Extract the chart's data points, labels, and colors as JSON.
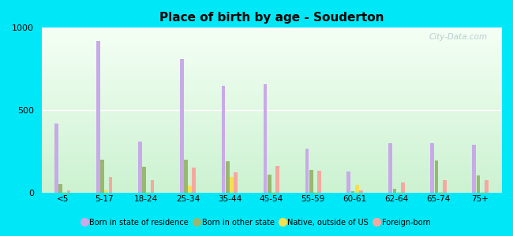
{
  "title": "Place of birth by age - Souderton",
  "categories": [
    "<5",
    "5-17",
    "18-24",
    "25-34",
    "35-44",
    "45-54",
    "55-59",
    "60-61",
    "62-64",
    "65-74",
    "75+"
  ],
  "series": {
    "Born in state of residence": [
      420,
      920,
      310,
      810,
      650,
      660,
      270,
      130,
      300,
      300,
      290
    ],
    "Born in other state": [
      55,
      200,
      160,
      200,
      190,
      110,
      140,
      10,
      25,
      195,
      105
    ],
    "Native, outside of US": [
      8,
      15,
      8,
      45,
      95,
      8,
      8,
      50,
      8,
      8,
      8
    ],
    "Foreign-born": [
      15,
      95,
      75,
      155,
      125,
      165,
      135,
      15,
      65,
      75,
      75
    ]
  },
  "colors": {
    "Born in state of residence": "#c8aae8",
    "Born in other state": "#98b870",
    "Native, outside of US": "#f5e050",
    "Foreign-born": "#f5a8a0"
  },
  "ylim": [
    0,
    1000
  ],
  "yticks": [
    0,
    500,
    1000
  ],
  "outer_bg": "#00e8f8",
  "watermark": "City-Data.com"
}
